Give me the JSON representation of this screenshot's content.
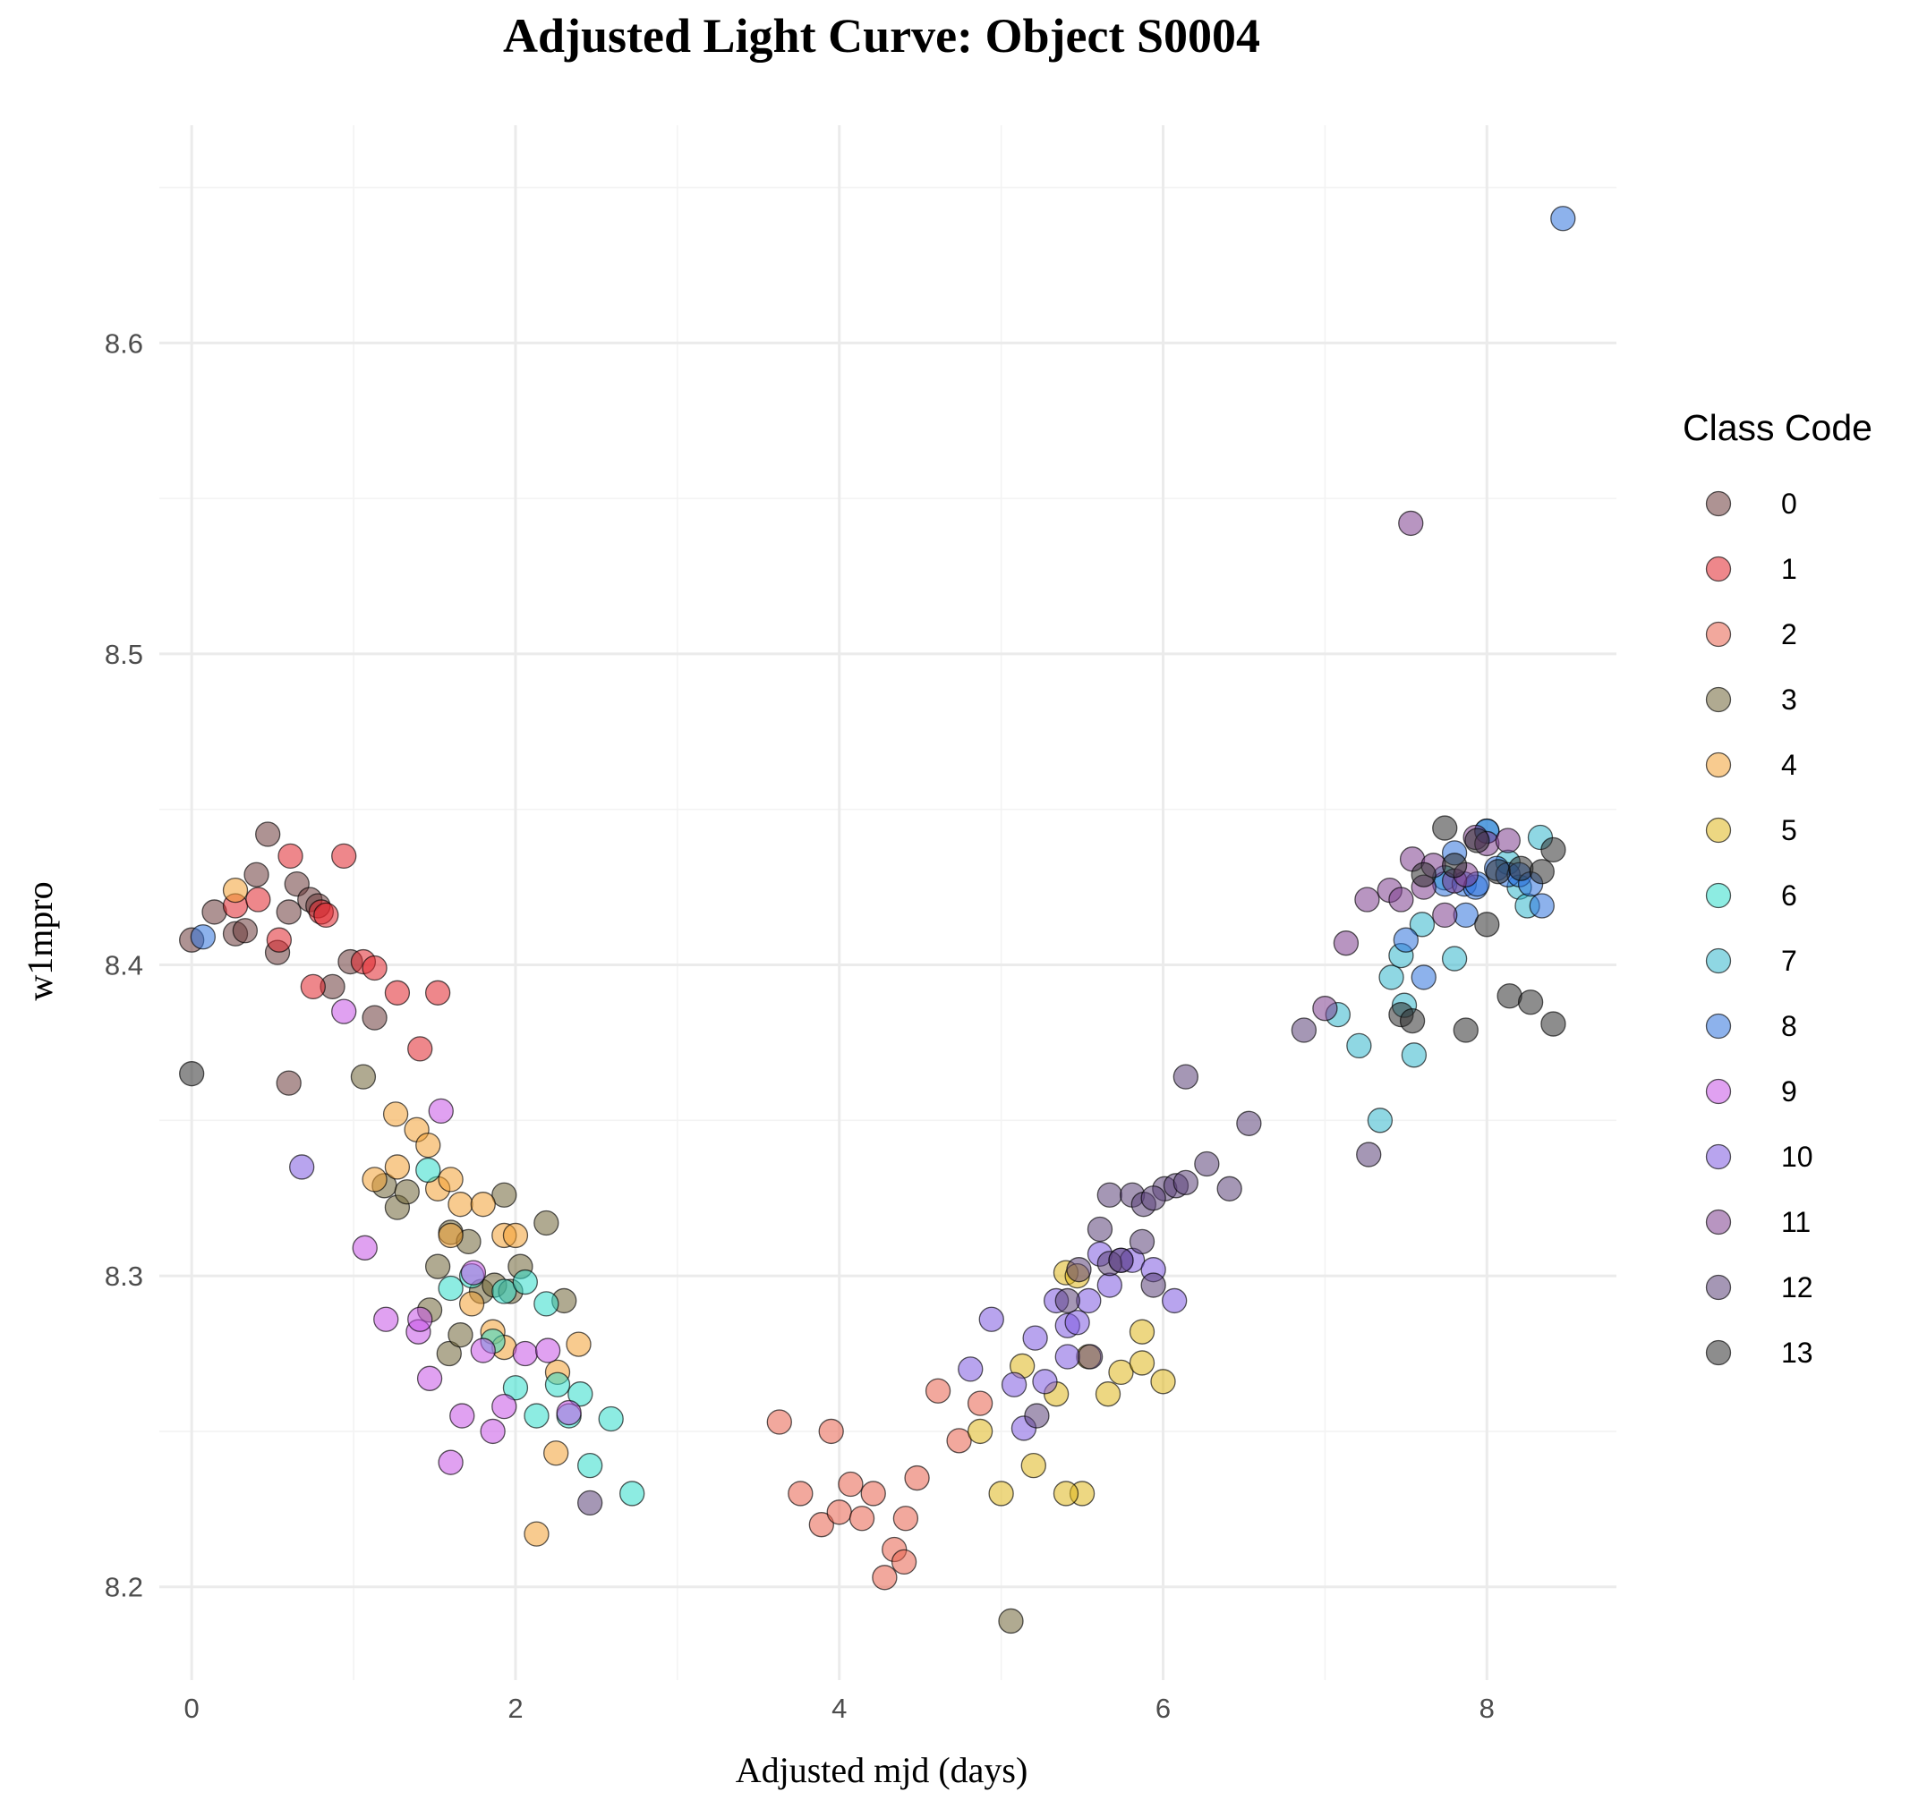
{
  "chart_data": {
    "type": "scatter",
    "title": "Adjusted Light Curve: Object S0004",
    "xlabel": "Adjusted mjd (days)",
    "ylabel": "w1mpro",
    "xlim": [
      -0.2,
      8.8
    ],
    "ylim": [
      8.17,
      8.67
    ],
    "xticks": [
      0,
      2,
      4,
      6,
      8
    ],
    "yticks": [
      8.2,
      8.3,
      8.4,
      8.5,
      8.6
    ],
    "grid": true,
    "legend": {
      "title": "Class Code",
      "position": "right"
    },
    "series": [
      {
        "name": "0",
        "color": "#6b3a3a",
        "x": [
          0.0,
          0.14,
          0.27,
          0.33,
          0.4,
          0.47,
          0.53,
          0.6,
          0.65,
          0.73,
          0.78,
          0.87,
          0.98,
          1.13,
          0.6
        ],
        "y": [
          8.408,
          8.417,
          8.41,
          8.411,
          8.429,
          8.442,
          8.404,
          8.417,
          8.426,
          8.421,
          8.419,
          8.393,
          8.401,
          8.383,
          8.362
        ]
      },
      {
        "name": "1",
        "color": "#e0242b",
        "x": [
          0.27,
          0.41,
          0.54,
          0.61,
          0.75,
          0.8,
          0.83,
          0.94,
          1.06,
          1.13,
          1.27,
          1.41,
          1.52
        ],
        "y": [
          8.419,
          8.421,
          8.408,
          8.435,
          8.393,
          8.417,
          8.416,
          8.435,
          8.401,
          8.399,
          8.391,
          8.373,
          8.391
        ]
      },
      {
        "name": "2",
        "color": "#e8604c",
        "x": [
          3.63,
          3.76,
          3.89,
          3.95,
          4.0,
          4.07,
          4.14,
          4.21,
          4.28,
          4.34,
          4.4,
          4.41,
          4.48,
          4.61,
          4.74,
          4.87
        ],
        "y": [
          8.253,
          8.23,
          8.22,
          8.25,
          8.224,
          8.233,
          8.222,
          8.23,
          8.203,
          8.212,
          8.208,
          8.222,
          8.235,
          8.263,
          8.247,
          8.259
        ]
      },
      {
        "name": "3",
        "color": "#6f6536",
        "x": [
          1.06,
          1.19,
          1.27,
          1.33,
          1.47,
          1.52,
          1.59,
          1.6,
          1.66,
          1.71,
          1.79,
          1.87,
          1.93,
          1.97,
          2.03,
          2.19,
          2.3,
          5.06
        ],
        "y": [
          8.364,
          8.329,
          8.322,
          8.327,
          8.289,
          8.303,
          8.275,
          8.314,
          8.281,
          8.311,
          8.295,
          8.297,
          8.326,
          8.295,
          8.303,
          8.317,
          8.292,
          8.189
        ]
      },
      {
        "name": "4",
        "color": "#f2a033",
        "x": [
          0.27,
          1.13,
          1.26,
          1.27,
          1.39,
          1.46,
          1.52,
          1.6,
          1.6,
          1.66,
          1.73,
          1.8,
          1.86,
          1.93,
          1.93,
          2.0,
          2.13,
          2.25,
          2.26,
          2.39
        ],
        "y": [
          8.424,
          8.331,
          8.352,
          8.335,
          8.347,
          8.342,
          8.328,
          8.331,
          8.313,
          8.323,
          8.291,
          8.323,
          8.282,
          8.313,
          8.277,
          8.313,
          8.217,
          8.243,
          8.269,
          8.278
        ]
      },
      {
        "name": "5",
        "color": "#dfb61c",
        "x": [
          4.87,
          5.0,
          5.13,
          5.2,
          5.34,
          5.4,
          5.47,
          5.5,
          5.54,
          5.66,
          5.74,
          5.87,
          5.87,
          6.0,
          5.4
        ],
        "y": [
          8.25,
          8.23,
          8.271,
          8.239,
          8.262,
          8.301,
          8.3,
          8.23,
          8.274,
          8.262,
          8.269,
          8.282,
          8.272,
          8.266,
          8.23
        ]
      },
      {
        "name": "6",
        "color": "#2fdccb",
        "x": [
          1.46,
          1.6,
          1.73,
          1.86,
          1.93,
          2.0,
          2.06,
          2.13,
          2.19,
          2.26,
          2.33,
          2.4,
          2.46,
          2.59,
          2.72
        ],
        "y": [
          8.334,
          8.296,
          8.3,
          8.279,
          8.295,
          8.264,
          8.298,
          8.255,
          8.291,
          8.265,
          8.255,
          8.262,
          8.239,
          8.254,
          8.23
        ]
      },
      {
        "name": "7",
        "color": "#33b6cc",
        "x": [
          7.08,
          7.21,
          7.34,
          7.41,
          7.47,
          7.49,
          7.55,
          7.6,
          7.74,
          7.8,
          8.0,
          8.13,
          8.2,
          8.33,
          8.25
        ],
        "y": [
          8.384,
          8.374,
          8.35,
          8.396,
          8.403,
          8.387,
          8.371,
          8.413,
          8.428,
          8.402,
          8.443,
          8.433,
          8.425,
          8.441,
          8.419
        ]
      },
      {
        "name": "8",
        "color": "#2f72dc",
        "x": [
          0.07,
          7.5,
          7.61,
          7.74,
          7.8,
          7.86,
          7.87,
          7.93,
          7.94,
          8.0,
          8.06,
          8.13,
          8.2,
          8.27,
          8.34,
          8.47
        ],
        "y": [
          8.409,
          8.408,
          8.396,
          8.426,
          8.436,
          8.426,
          8.416,
          8.425,
          8.426,
          8.443,
          8.431,
          8.429,
          8.429,
          8.426,
          8.419,
          8.64
        ]
      },
      {
        "name": "9",
        "color": "#c653e5",
        "x": [
          0.94,
          1.07,
          1.2,
          1.4,
          1.41,
          1.47,
          1.54,
          1.6,
          1.67,
          1.74,
          1.8,
          1.86,
          1.93,
          2.06,
          2.2,
          2.33
        ],
        "y": [
          8.385,
          8.309,
          8.286,
          8.282,
          8.286,
          8.267,
          8.353,
          8.24,
          8.255,
          8.301,
          8.276,
          8.25,
          8.258,
          8.275,
          8.276,
          8.256
        ]
      },
      {
        "name": "10",
        "color": "#7e5ae0",
        "x": [
          0.68,
          4.81,
          4.94,
          5.08,
          5.14,
          5.21,
          5.27,
          5.34,
          5.41,
          5.41,
          5.47,
          5.54,
          5.61,
          5.67,
          5.74,
          5.81,
          5.94,
          6.07
        ],
        "y": [
          8.335,
          8.27,
          8.286,
          8.265,
          8.251,
          8.28,
          8.266,
          8.292,
          8.284,
          8.274,
          8.285,
          8.292,
          8.307,
          8.297,
          8.305,
          8.305,
          8.302,
          8.292
        ]
      },
      {
        "name": "11",
        "color": "#7d3e8e",
        "x": [
          7.0,
          7.13,
          7.26,
          7.4,
          7.47,
          7.54,
          7.61,
          7.67,
          7.74,
          7.8,
          7.87,
          7.93,
          8.0,
          8.13,
          7.53
        ],
        "y": [
          8.386,
          8.407,
          8.421,
          8.424,
          8.421,
          8.434,
          8.425,
          8.432,
          8.416,
          8.427,
          8.429,
          8.441,
          8.439,
          8.44,
          8.542
        ]
      },
      {
        "name": "12",
        "color": "#5b4278",
        "x": [
          2.46,
          5.22,
          5.41,
          5.48,
          5.55,
          5.61,
          5.67,
          5.74,
          5.87,
          5.94,
          6.01,
          6.14,
          6.27,
          6.41,
          6.53,
          6.87,
          7.27,
          5.67,
          5.81,
          5.88,
          5.94,
          6.08,
          6.14
        ],
        "y": [
          8.227,
          8.255,
          8.292,
          8.302,
          8.274,
          8.315,
          8.304,
          8.305,
          8.311,
          8.297,
          8.328,
          8.364,
          8.336,
          8.328,
          8.349,
          8.379,
          8.339,
          8.326,
          8.326,
          8.323,
          8.325,
          8.329,
          8.33
        ]
      },
      {
        "name": "13",
        "color": "#303030",
        "x": [
          0.0,
          7.47,
          7.54,
          7.61,
          7.74,
          7.8,
          7.87,
          7.94,
          8.0,
          8.07,
          8.14,
          8.21,
          8.27,
          8.34,
          8.41,
          8.41
        ],
        "y": [
          8.365,
          8.384,
          8.382,
          8.429,
          8.444,
          8.432,
          8.379,
          8.44,
          8.413,
          8.43,
          8.39,
          8.431,
          8.388,
          8.43,
          8.437,
          8.381
        ]
      }
    ]
  }
}
